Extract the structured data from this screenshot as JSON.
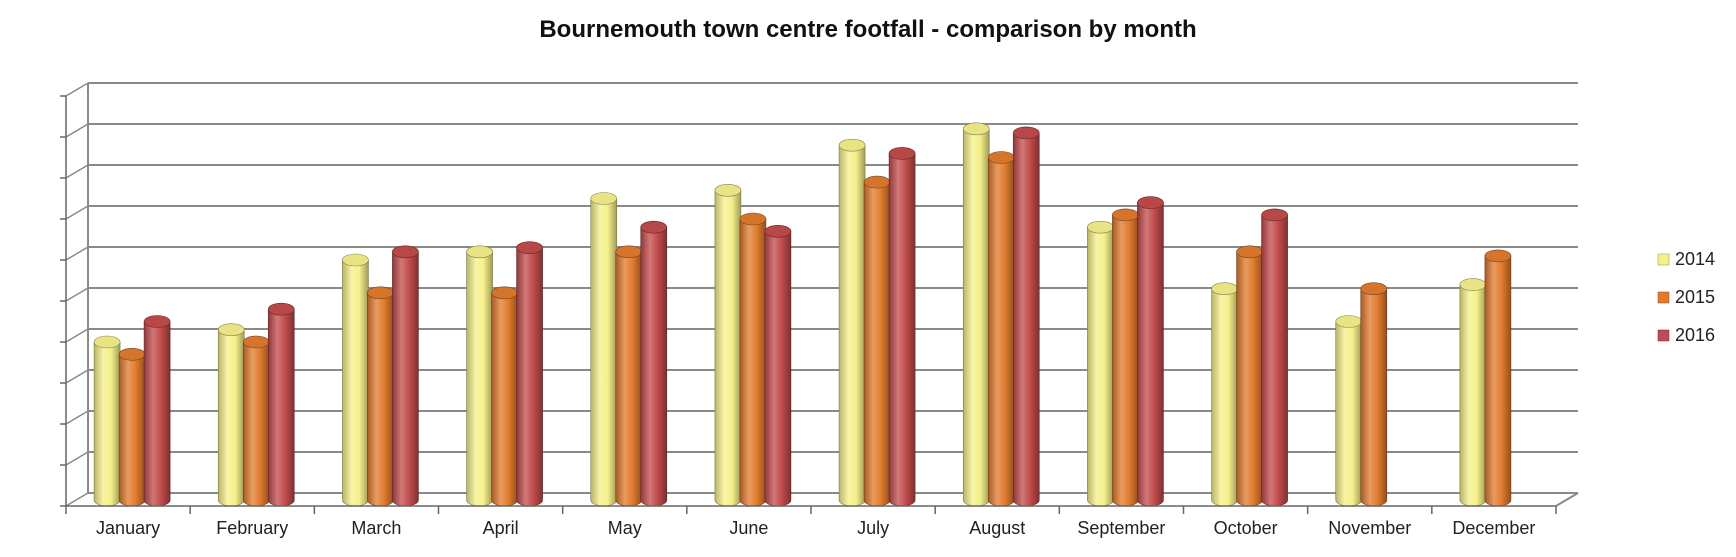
{
  "chart_data": {
    "type": "bar",
    "title": "Bournemouth town centre footfall - comparison by month",
    "xlabel": "",
    "ylabel": "",
    "categories": [
      "January",
      "February",
      "March",
      "April",
      "May",
      "June",
      "July",
      "August",
      "September",
      "October",
      "November",
      "December"
    ],
    "series": [
      {
        "name": "2014",
        "color": "#f5f08a",
        "values": [
          4.0,
          4.3,
          6.0,
          6.2,
          7.5,
          7.7,
          8.8,
          9.2,
          6.8,
          5.3,
          4.5,
          5.4
        ]
      },
      {
        "name": "2015",
        "color": "#e07b2e",
        "values": [
          3.7,
          4.0,
          5.2,
          5.2,
          6.2,
          7.0,
          7.9,
          8.5,
          7.1,
          6.2,
          5.3,
          6.1
        ]
      },
      {
        "name": "2016",
        "color": "#c24b4b",
        "values": [
          4.5,
          4.8,
          6.2,
          6.3,
          6.8,
          6.7,
          8.6,
          9.1,
          7.4,
          7.1,
          null,
          null
        ]
      }
    ],
    "ylim": [
      0,
      10
    ],
    "y_tick_count": 11,
    "grid": true,
    "y_tick_labels_shown": false,
    "legend": "right"
  }
}
